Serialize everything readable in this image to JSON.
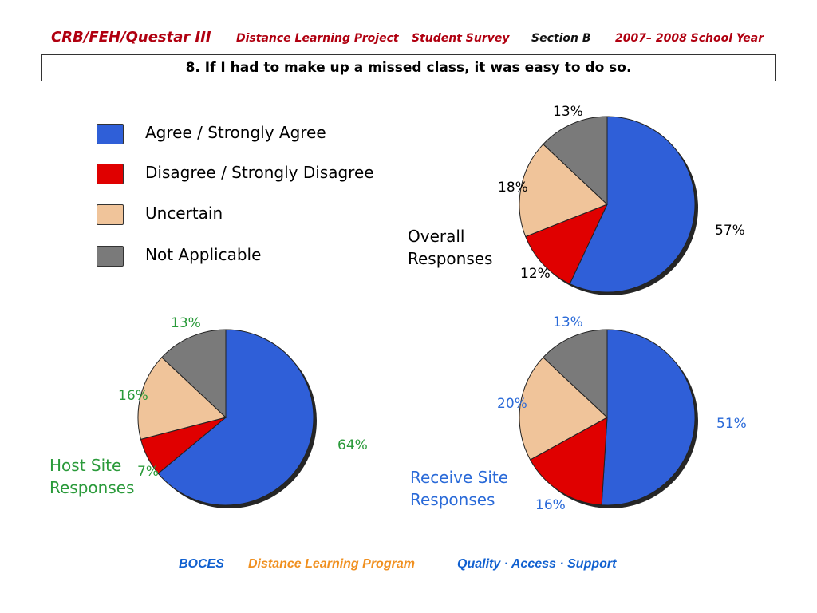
{
  "header": {
    "project": "CRB/FEH/Questar III",
    "subtitle": "Distance Learning Project",
    "survey": "Student Survey",
    "section": "Section B",
    "year": "2007– 2008 School Year"
  },
  "question": "8. If I had to make up a missed class, it was easy to do so.",
  "legend": [
    {
      "label": "Agree / Strongly Agree",
      "color": "#2f5fd8"
    },
    {
      "label": "Disagree / Strongly Disagree",
      "color": "#e00000"
    },
    {
      "label": "Uncertain",
      "color": "#f0c49a"
    },
    {
      "label": "Not Applicable",
      "color": "#7a7a7a"
    }
  ],
  "chart_data": [
    {
      "type": "pie",
      "title": "Overall Responses",
      "categories": [
        "Agree / Strongly Agree",
        "Disagree / Strongly Disagree",
        "Uncertain",
        "Not Applicable"
      ],
      "values": [
        57,
        12,
        18,
        13
      ],
      "labels": [
        "57%",
        "12%",
        "18%",
        "13%"
      ],
      "label_color": "#000000"
    },
    {
      "type": "pie",
      "title": "Host Site Responses",
      "categories": [
        "Agree / Strongly Agree",
        "Disagree / Strongly Disagree",
        "Uncertain",
        "Not Applicable"
      ],
      "values": [
        64,
        7,
        16,
        13
      ],
      "labels": [
        "64%",
        "7%",
        "16%",
        "13%"
      ],
      "label_color": "#2a9a3a"
    },
    {
      "type": "pie",
      "title": "Receive Site Responses",
      "categories": [
        "Agree / Strongly Agree",
        "Disagree / Strongly Disagree",
        "Uncertain",
        "Not Applicable"
      ],
      "values": [
        51,
        16,
        20,
        13
      ],
      "labels": [
        "51%",
        "16%",
        "20%",
        "13%"
      ],
      "label_color": "#2a6ad8"
    }
  ],
  "footer": {
    "boces": "BOCES",
    "program": "Distance Learning Program",
    "motto": "Quality · Access · Support"
  }
}
